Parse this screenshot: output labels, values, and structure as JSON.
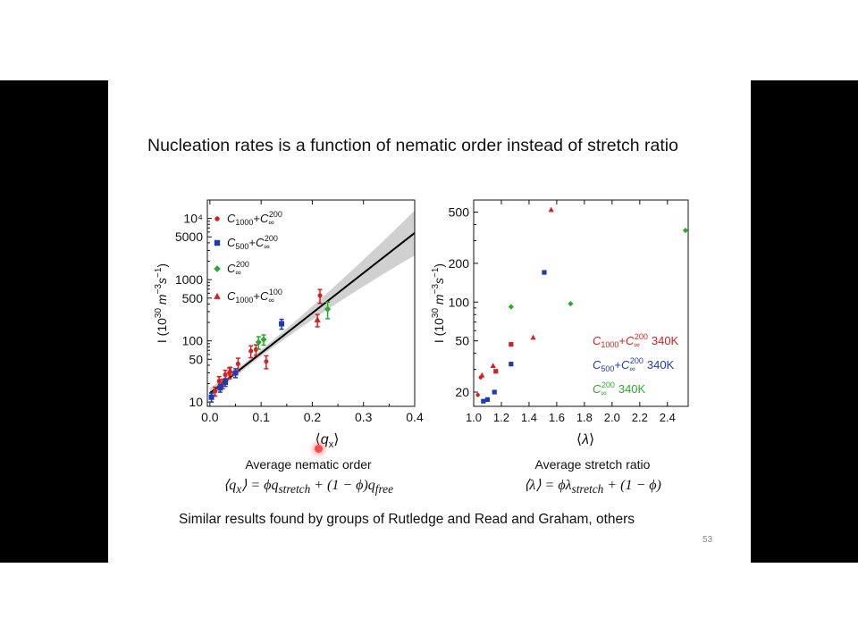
{
  "slide": {
    "title": "Nucleation rates is a function of nematic order instead of stretch ratio",
    "left_caption": "Average nematic order",
    "left_equation": "⟨q_x⟩ = ϕq_stretch + (1 − ϕ)q_free",
    "right_caption": "Average stretch ratio",
    "right_equation": "⟨λ⟩ = ϕλ_stretch + (1 − ϕ)",
    "footer": "Similar results found by groups of Rutledge and Read and Graham, others",
    "page_number": "53"
  },
  "colors": {
    "red": "#d42020",
    "blue": "#1f3bb3",
    "green": "#2daa2d",
    "band": "#c8c8c8",
    "fit": "#000000"
  },
  "chart_data": [
    {
      "type": "scatter",
      "title": "",
      "xlabel": "⟨q_x⟩",
      "ylabel": "I (10^30 m^-3 s^-1)",
      "xlim": [
        -0.005,
        0.4
      ],
      "ylim": [
        8.5,
        20000
      ],
      "yscale": "log",
      "xticks": [
        "0.0",
        "0.1",
        "0.2",
        "0.3",
        "0.4"
      ],
      "yticks": [
        {
          "v": 10,
          "t": "10"
        },
        {
          "v": 50,
          "t": "50"
        },
        {
          "v": 100,
          "t": "100"
        },
        {
          "v": 500,
          "t": "500"
        },
        {
          "v": 1000,
          "t": "1000"
        },
        {
          "v": 5000,
          "t": "5000"
        },
        {
          "v": 10000,
          "t": "10⁴"
        }
      ],
      "legend_position": "top-left",
      "series": [
        {
          "name": "C1000+C∞200",
          "marker": "circle",
          "color": "red",
          "points": [
            [
              0.01,
              15,
              2.5
            ],
            [
              0.018,
              22,
              4
            ],
            [
              0.025,
              20,
              3.5
            ],
            [
              0.03,
              28,
              5
            ],
            [
              0.038,
              30,
              6
            ],
            [
              0.055,
              42,
              10
            ],
            [
              0.08,
              68,
              15
            ],
            [
              0.09,
              72,
              14
            ],
            [
              0.11,
              46,
              11
            ],
            [
              0.215,
              550,
              140
            ]
          ]
        },
        {
          "name": "C500+C∞200",
          "marker": "square",
          "color": "blue",
          "points": [
            [
              0.003,
              12,
              2
            ],
            [
              0.02,
              17,
              2.5
            ],
            [
              0.03,
              21,
              3
            ],
            [
              0.05,
              30,
              5
            ],
            [
              0.14,
              190,
              35
            ]
          ]
        },
        {
          "name": "C∞200",
          "marker": "diamond",
          "color": "green",
          "points": [
            [
              0.095,
              95,
              22
            ],
            [
              0.105,
              105,
              20
            ],
            [
              0.23,
              330,
              100
            ]
          ]
        },
        {
          "name": "C1000+C∞100",
          "marker": "triangle",
          "color": "red",
          "points": [
            [
              0.04,
              32,
              5
            ],
            [
              0.21,
              220,
              50
            ]
          ]
        }
      ],
      "fit_line": {
        "x": [
          0.0,
          0.4
        ],
        "y": [
          14,
          5800
        ]
      }
    },
    {
      "type": "scatter",
      "title": "",
      "xlabel": "⟨λ⟩",
      "ylabel": "I (10^30 m^-3 s^-1)",
      "xlim": [
        1.0,
        2.55
      ],
      "ylim": [
        15.5,
        620
      ],
      "yscale": "log",
      "xticks": [
        "1.0",
        "1.2",
        "1.4",
        "1.6",
        "1.8",
        "2.0",
        "2.2",
        "2.4"
      ],
      "yticks": [
        {
          "v": 20,
          "t": "20"
        },
        {
          "v": 50,
          "t": "50"
        },
        {
          "v": 100,
          "t": "100"
        },
        {
          "v": 200,
          "t": "200"
        },
        {
          "v": 500,
          "t": "500"
        }
      ],
      "legend_position": "right",
      "legend": [
        {
          "name": "C1000+C∞200 340K",
          "color": "red"
        },
        {
          "name": "C500+C∞200 340K",
          "color": "blue"
        },
        {
          "name": "C∞200 340K",
          "color": "green"
        }
      ],
      "series": [
        {
          "name": "C1000+C∞200 340K (circles)",
          "marker": "circle",
          "color": "red",
          "points": [
            [
              1.03,
              19
            ],
            [
              1.05,
              26
            ]
          ]
        },
        {
          "name": "C1000+C∞200 340K (squares)",
          "marker": "square",
          "color": "red",
          "points": [
            [
              1.16,
              29
            ],
            [
              1.27,
              47
            ]
          ]
        },
        {
          "name": "C1000+C∞200 340K (triangles)",
          "marker": "triangle",
          "color": "red",
          "points": [
            [
              1.06,
              27
            ],
            [
              1.14,
              32
            ],
            [
              1.43,
              53
            ],
            [
              1.56,
              520
            ]
          ]
        },
        {
          "name": "C500+C∞200 340K",
          "marker": "square",
          "color": "blue",
          "points": [
            [
              1.07,
              17
            ],
            [
              1.1,
              17.5
            ],
            [
              1.15,
              20
            ],
            [
              1.27,
              33
            ],
            [
              1.51,
              170
            ]
          ]
        },
        {
          "name": "C∞200 340K",
          "marker": "diamond",
          "color": "green",
          "points": [
            [
              1.27,
              92
            ],
            [
              1.7,
              97
            ],
            [
              2.53,
              360
            ]
          ]
        }
      ]
    }
  ]
}
